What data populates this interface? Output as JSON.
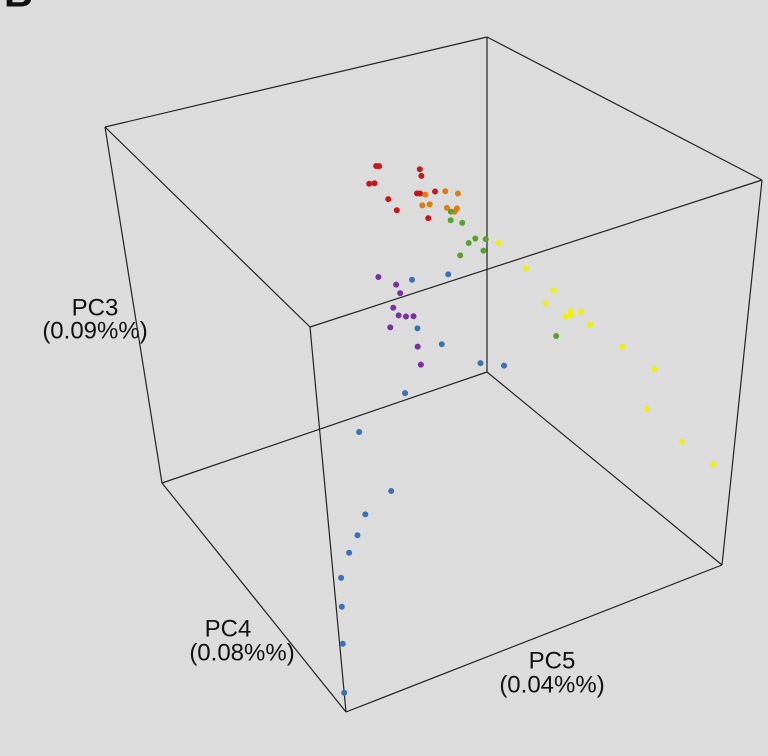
{
  "chart_data": {
    "type": "scatter3d",
    "panel_label": "B",
    "zlabel": [
      "PC3",
      "(0.09%%)"
    ],
    "ylabel": [
      "PC4",
      "(0.08%%)"
    ],
    "xlabel": [
      "PC5",
      "(0.04%%)"
    ],
    "xlim": [
      0,
      1
    ],
    "ylim": [
      0,
      1
    ],
    "zlim": [
      0,
      1
    ],
    "series": [
      {
        "color": "#f2ee0c",
        "x": [
          0.82,
          0.86,
          0.9,
          0.94,
          0.88,
          0.92,
          0.84,
          0.96,
          0.98,
          0.95,
          0.9,
          0.93,
          0.8,
          0.76
        ],
        "y": [
          0.5,
          0.48,
          0.52,
          0.5,
          0.45,
          0.55,
          0.5,
          0.4,
          0.3,
          0,
          0.2,
          0.1,
          0.55,
          0.6
        ],
        "z": [
          0.52,
          0.48,
          0.45,
          0.42,
          0.5,
          0.44,
          0.55,
          0.4,
          0.38,
          0.28,
          0.35,
          0.3,
          0.6,
          0.66
        ]
      },
      {
        "color": "#7b2fa0",
        "x": [
          0.44,
          0.46,
          0.45,
          0.47,
          0.43,
          0.46,
          0.48,
          0.44,
          0.45,
          0.42
        ],
        "y": [
          0.5,
          0.52,
          0.48,
          0.55,
          0.5,
          0.45,
          0.5,
          0.58,
          0.42,
          0.5
        ],
        "z": [
          0.7,
          0.66,
          0.62,
          0.58,
          0.64,
          0.55,
          0.6,
          0.68,
          0.52,
          0.59
        ]
      },
      {
        "color": "#c8161d",
        "x": [
          0.4,
          0.44,
          0.48,
          0.5,
          0.46,
          0.42,
          0.52,
          0.47,
          0.43,
          0.49,
          0.45,
          0.51
        ],
        "y": [
          0.5,
          0.55,
          0.45,
          0.5,
          0.6,
          0.48,
          0.52,
          0.4,
          0.58,
          0.46,
          0.5,
          0.44
        ],
        "z": [
          0.99,
          1,
          0.96,
          0.93,
          0.97,
          0.95,
          0.98,
          0.92,
          0.94,
          1,
          0.9,
          0.96
        ]
      },
      {
        "color": "#e07b0d",
        "x": [
          0.52,
          0.56,
          0.58,
          0.54,
          0.57,
          0.53,
          0.59,
          0.55
        ],
        "y": [
          0.5,
          0.48,
          0.52,
          0.55,
          0.45,
          0.5,
          0.5,
          0.42
        ],
        "z": [
          0.92,
          0.88,
          0.9,
          0.86,
          0.93,
          0.89,
          0.85,
          0.91
        ]
      },
      {
        "color": "#5aa02c",
        "x": [
          0.58,
          0.62,
          0.6,
          0.64,
          0.61,
          0.59,
          0.63,
          0.66,
          0.85
        ],
        "y": [
          0.5,
          0.52,
          0.46,
          0.5,
          0.55,
          0.48,
          0.44,
          0.5,
          0.5
        ],
        "z": [
          0.83,
          0.8,
          0.78,
          0.76,
          0.82,
          0.74,
          0.79,
          0.72,
          0.42
        ]
      },
      {
        "color": "#3b6fb6",
        "x": [
          0,
          0.05,
          0.1,
          0.2,
          0.3,
          0.4,
          0.35,
          0.45,
          0.5,
          0.55,
          0.62,
          0.7,
          0.6,
          0.48,
          0.25,
          0.15
        ],
        "y": [
          0,
          0.1,
          0.2,
          0.35,
          0.45,
          0.5,
          0.55,
          0.5,
          0.52,
          0.5,
          0.45,
          0.48,
          0.55,
          0.5,
          0.4,
          0.3
        ],
        "z": [
          0.05,
          0.1,
          0.12,
          0.14,
          0.15,
          0.15,
          0.3,
          0.4,
          0.55,
          0.5,
          0.45,
          0.4,
          0.65,
          0.7,
          0.14,
          0.12
        ]
      }
    ]
  }
}
